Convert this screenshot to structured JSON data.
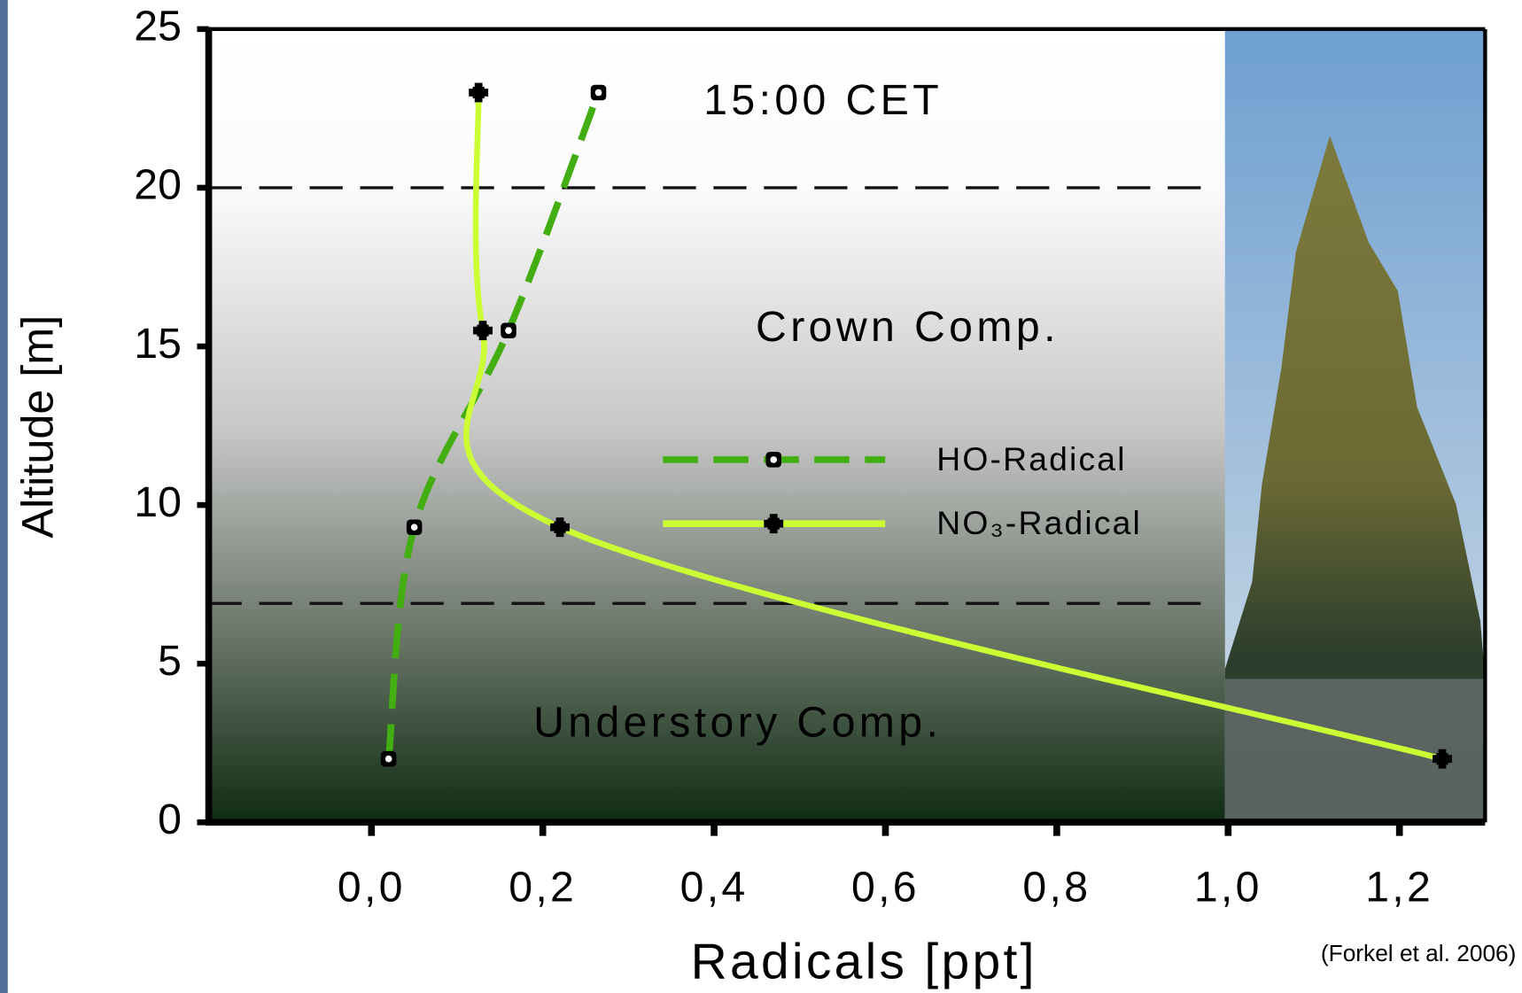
{
  "chart_data": {
    "type": "line",
    "x_label": "Radicals [ppt]",
    "y_label": "Altitude [m]",
    "annotations": [
      "15:00 CET",
      "Crown Comp.",
      "Understory Comp."
    ],
    "source": "(Forkel et al. 2006)",
    "xlim": [
      -0.19,
      1.3
    ],
    "ylim": [
      0,
      25
    ],
    "xticks": [
      {
        "value": 0,
        "label": "0,0"
      },
      {
        "value": 0.2,
        "label": "0,2"
      },
      {
        "value": 0.4,
        "label": "0,4"
      },
      {
        "value": 0.6,
        "label": "0,6"
      },
      {
        "value": 0.8,
        "label": "0,8"
      },
      {
        "value": 1.0,
        "label": "1,0"
      },
      {
        "value": 1.2,
        "label": "1,2"
      }
    ],
    "yticks": [
      0,
      5,
      10,
      15,
      20,
      25
    ],
    "hlines": [
      20,
      6.9
    ],
    "series": [
      {
        "name": "HO-Radical",
        "color": "#43ae12",
        "dash": true,
        "x": [
          0.02,
          0.05,
          0.16,
          0.265
        ],
        "values": [
          2,
          9.3,
          15.5,
          23
        ]
      },
      {
        "name": "NO₃-Radical",
        "color": "#ccff33",
        "dash": false,
        "x": [
          1.25,
          0.22,
          0.13,
          0.125
        ],
        "values": [
          2,
          9.3,
          15.5,
          23
        ]
      }
    ]
  }
}
